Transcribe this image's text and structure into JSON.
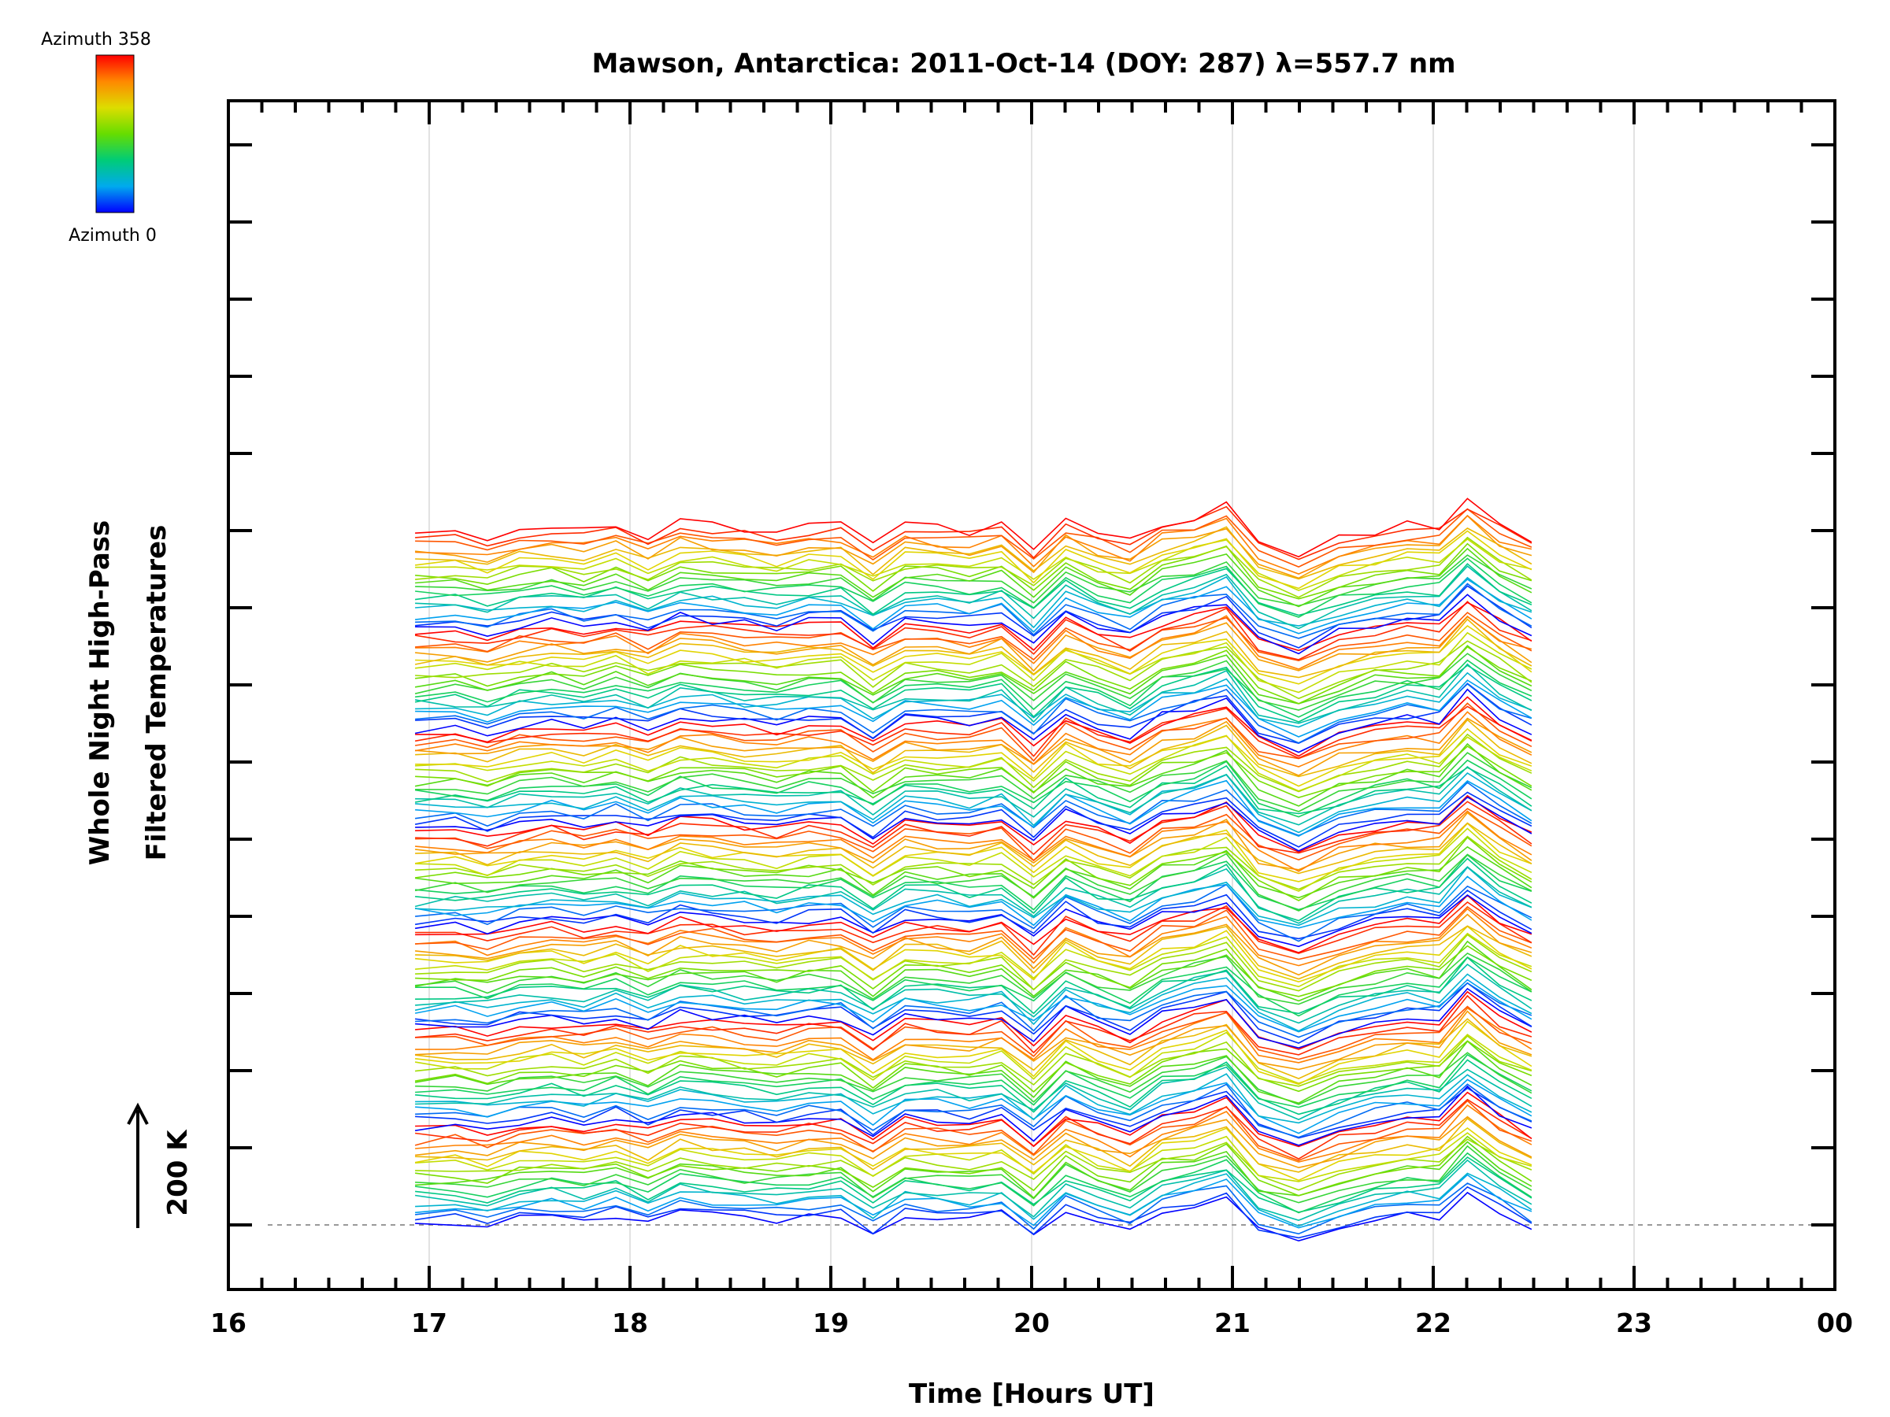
{
  "chart_data": {
    "type": "line",
    "title": "Mawson, Antarctica: 2011-Oct-14 (DOY: 287) λ=557.7 nm",
    "xlabel": "Time [Hours UT]",
    "ylabel_line1": "Whole Night High-Pass",
    "ylabel_line2": "Filtered Temperatures",
    "x_tick_labels": [
      "16",
      "17",
      "18",
      "19",
      "20",
      "21",
      "22",
      "23",
      "00"
    ],
    "xlim": [
      16,
      24
    ],
    "scale_bar_label": "200 K",
    "colorbar": {
      "top_label": "Azimuth 358",
      "bottom_label": "Azimuth 0",
      "colors": [
        "#ff0000",
        "#ff8800",
        "#dddd00",
        "#66dd00",
        "#00cc77",
        "#00aaee",
        "#0000ff"
      ]
    },
    "grid": true,
    "baseline_dashed": true,
    "x": [
      16.93,
      17.13,
      17.29,
      17.45,
      17.61,
      17.77,
      17.93,
      18.09,
      18.25,
      18.41,
      18.57,
      18.73,
      18.89,
      19.05,
      19.21,
      19.37,
      19.53,
      19.69,
      19.85,
      20.01,
      20.17,
      20.33,
      20.49,
      20.65,
      20.81,
      20.97,
      21.13,
      21.33,
      21.53,
      21.71,
      21.87,
      22.03,
      22.17,
      22.33,
      22.49
    ],
    "profile": [
      0,
      5,
      -10,
      15,
      25,
      10,
      30,
      0,
      40,
      30,
      20,
      10,
      25,
      30,
      -30,
      30,
      25,
      15,
      35,
      -40,
      50,
      10,
      -20,
      40,
      60,
      90,
      -20,
      -60,
      -10,
      15,
      30,
      25,
      110,
      40,
      -10
    ],
    "azimuth_sets": 7,
    "lines_per_set": 20,
    "offset_per_line": 6.3
  }
}
